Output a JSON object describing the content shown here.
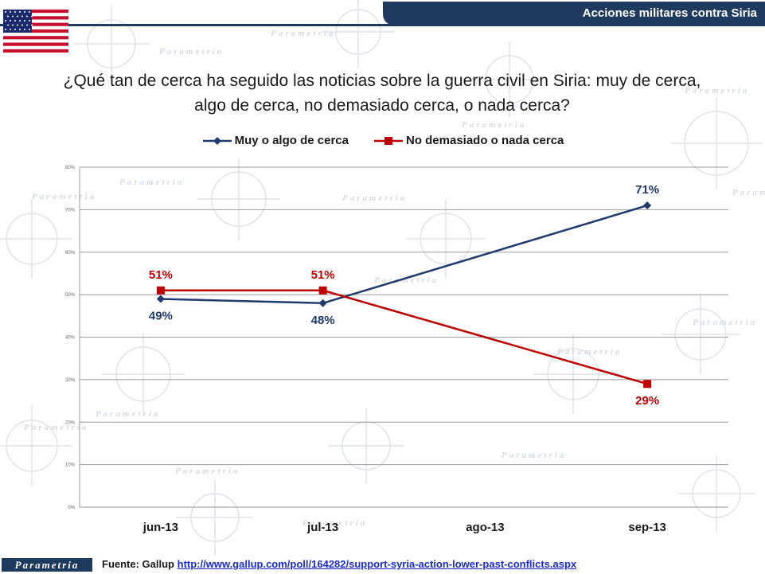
{
  "header": {
    "title": "Acciones militares contra Siria"
  },
  "question": {
    "line1": "¿Qué tan de cerca ha seguido las noticias sobre la guerra civil en Siria: muy de cerca,",
    "line2": "algo de cerca, no demasiado cerca, o nada cerca?"
  },
  "watermark": {
    "text": "Parametria"
  },
  "footer": {
    "logo": "Parametria",
    "source_label": "Fuente: Gallup ",
    "source_url": "http://www.gallup.com/poll/164282/support-syria-action-lower-past-conflicts.aspx"
  },
  "colors": {
    "navy": "#1f3a6e",
    "red": "#c00000",
    "header": "#1f3a5f"
  },
  "chart_data": {
    "type": "line",
    "title": "",
    "xlabel": "",
    "ylabel": "",
    "categories": [
      "jun-13",
      "jul-13",
      "ago-13",
      "sep-13"
    ],
    "y_ticks": [
      "0%",
      "10%",
      "20%",
      "30%",
      "40%",
      "50%",
      "60%",
      "70%",
      "80%"
    ],
    "ylim": [
      0,
      80
    ],
    "grid": true,
    "legend_position": "top",
    "series": [
      {
        "name": "Muy o algo de cerca",
        "color": "#1f3a6e",
        "marker": "diamond",
        "values": [
          49,
          48,
          null,
          71
        ],
        "labels": [
          "49%",
          "48%",
          "",
          "71%"
        ]
      },
      {
        "name": "No demasiado o nada cerca",
        "color": "#c00000",
        "marker": "square",
        "values": [
          51,
          51,
          null,
          29
        ],
        "labels": [
          "51%",
          "51%",
          "",
          "29%"
        ]
      }
    ]
  }
}
